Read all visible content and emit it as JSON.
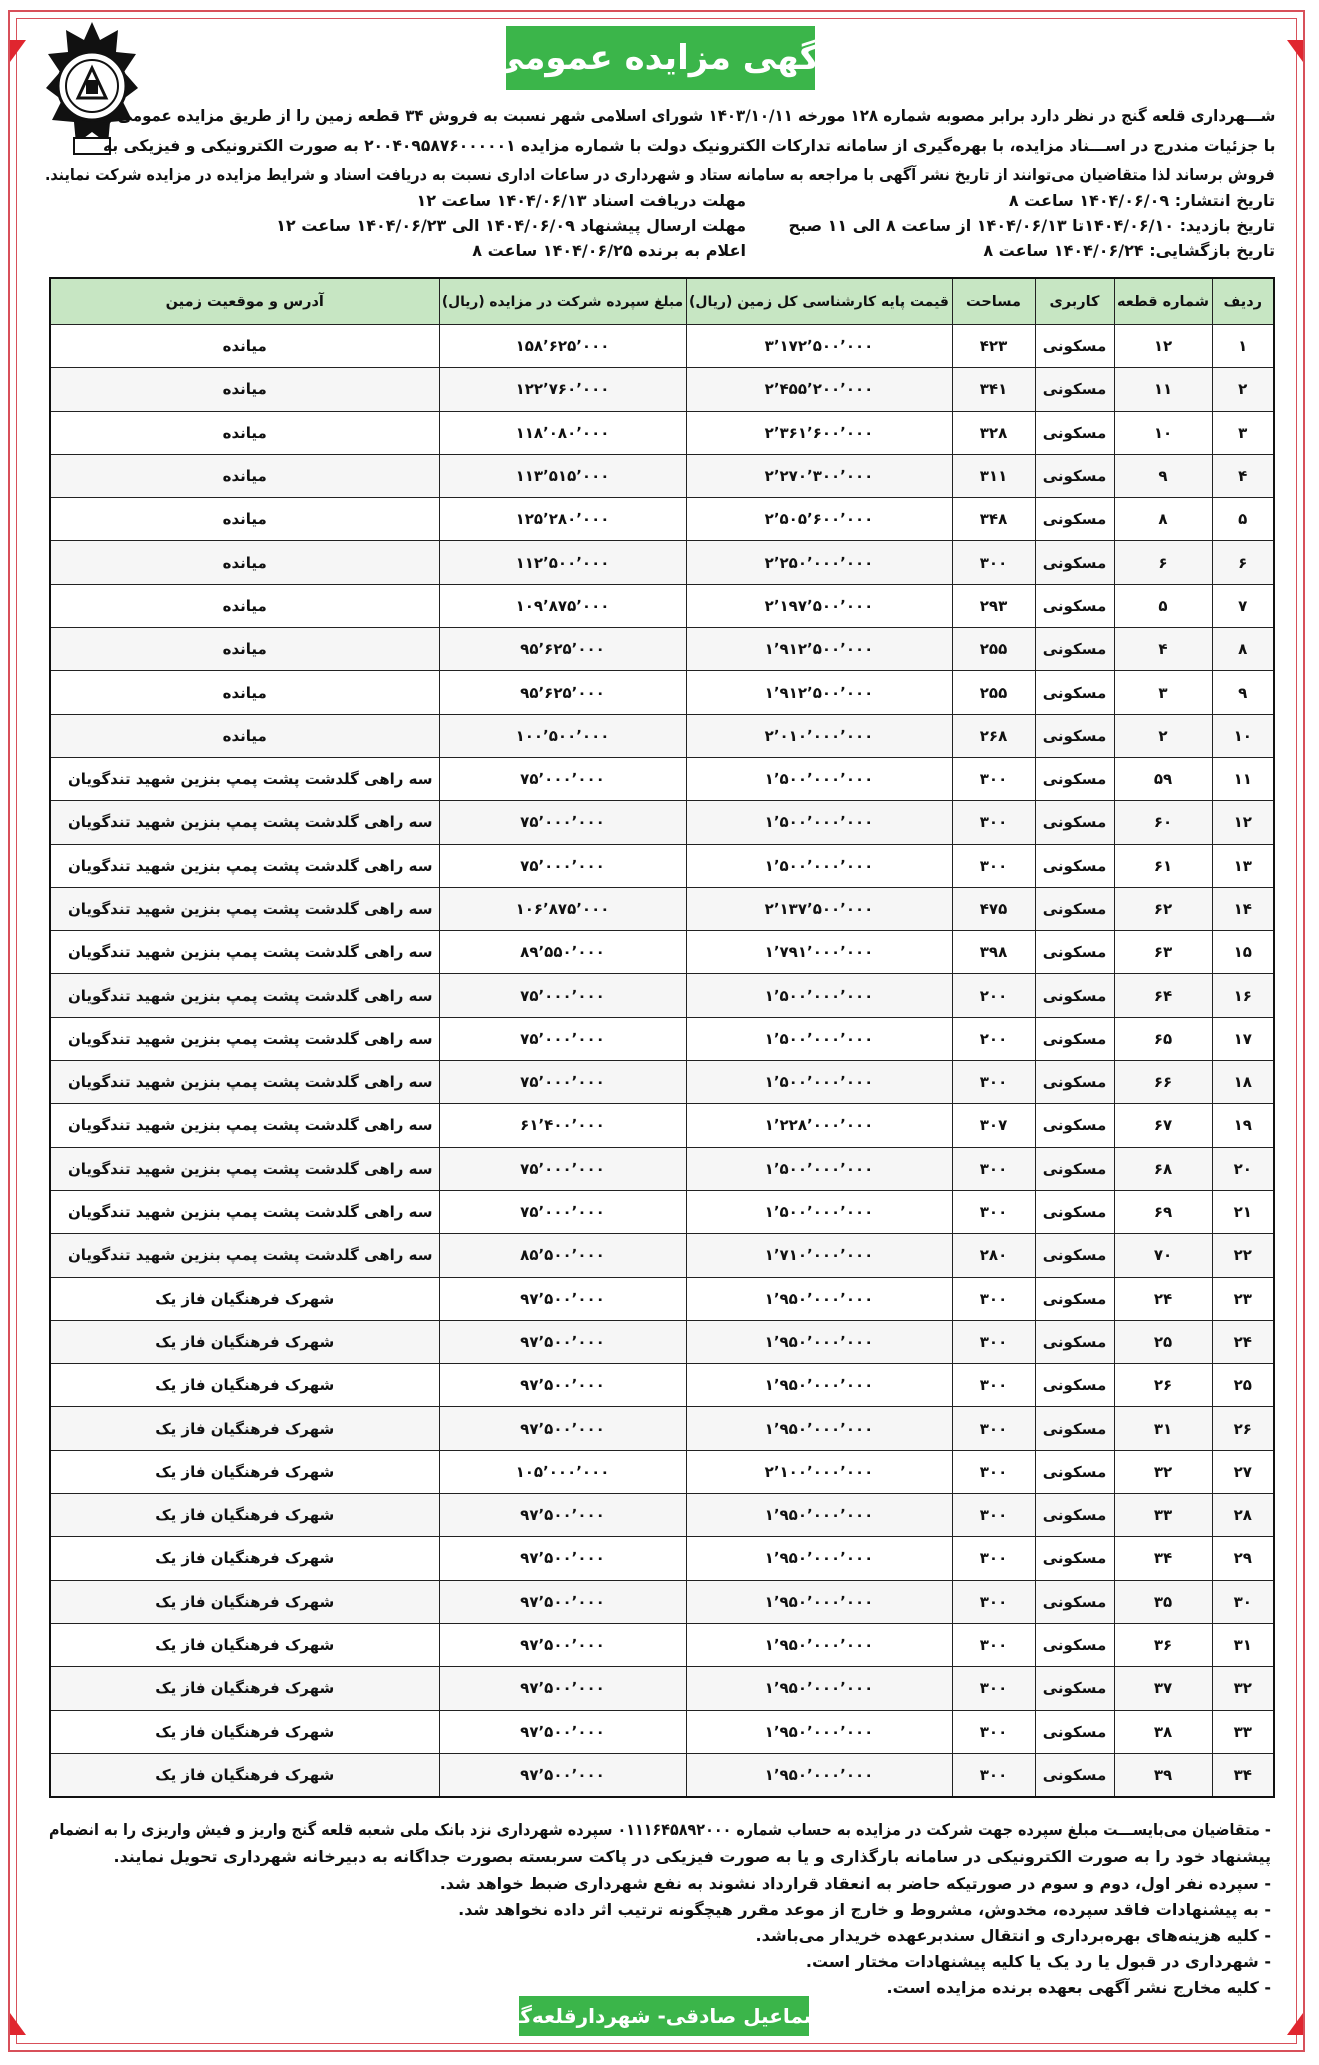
{
  "title": "آگهی مزایده عمومی",
  "logo": {
    "text": "شهرداری قلعه گنج ۱۳۳۷",
    "icon": "municipality-seal-icon"
  },
  "intro": [
    "شـــهرداری قلعه گنج در نظر دارد برابر مصوبه شماره ۱۲۸ مورخه ۱۴۰۳/۱۰/۱۱ شورای اسلامی شهر نسبت به فروش ۳۴ قطعه زمین را از طریق مزایده عمومی و",
    "با جزئیات مندرج در اســـناد مزایده، با بهره‌گیری از سامانه تدارکات الکترونیک دولت با شماره مزایده ۲۰۰۴۰۹۵۸۷۶۰۰۰۰۰۱ به صورت الکترونیکی و فیزیکی به",
    "فروش برساند لذا متقاضیان می‌توانند از تاریخ نشر آگهی با مراجعه به سامانه ستاد و شهرداری در ساعات اداری نسبت به دریافت اسناد و شرایط مزایده در مزایده شرکت نمایند."
  ],
  "dates_right": [
    "تاریخ انتشار: ۱۴۰۴/۰۶/۰۹ ساعت ۸",
    "تاریخ بازدید: ۱۴۰۴/۰۶/۱۰تا ۱۴۰۴/۰۶/۱۳ از ساعت ۸ الی ۱۱ صبح",
    "تاریخ بازگشایی: ۱۴۰۴/۰۶/۲۴ ساعت ۸"
  ],
  "dates_left": [
    "مهلت دریافت اسناد ۱۴۰۴/۰۶/۱۳ ساعت ۱۲",
    "مهلت ارسال پیشنهاد ۱۴۰۴/۰۶/۰۹ الی ۱۴۰۴/۰۶/۲۳ ساعت ۱۲",
    "اعلام به برنده ۱۴۰۴/۰۶/۲۵ ساعت ۸"
  ],
  "table": {
    "headers": [
      "ردیف",
      "شماره قطعه",
      "کاربری",
      "مساحت",
      "قیمت پایه کارشناسی کل زمین (ریال)",
      "مبلغ سپرده شرکت در مزایده (ریال)",
      "آدرس و موقعیت زمین"
    ],
    "header_color": "#c7e6c3",
    "rows": [
      [
        "۱",
        "۱۲",
        "مسکونی",
        "۴۲۳",
        "۳٬۱۷۲٬۵۰۰٬۰۰۰",
        "۱۵۸٬۶۲۵٬۰۰۰",
        "میانده"
      ],
      [
        "۲",
        "۱۱",
        "مسکونی",
        "۳۴۱",
        "۲٬۴۵۵٬۲۰۰٬۰۰۰",
        "۱۲۲٬۷۶۰٬۰۰۰",
        "میانده"
      ],
      [
        "۳",
        "۱۰",
        "مسکونی",
        "۳۲۸",
        "۲٬۳۶۱٬۶۰۰٬۰۰۰",
        "۱۱۸٬۰۸۰٬۰۰۰",
        "میانده"
      ],
      [
        "۴",
        "۹",
        "مسکونی",
        "۳۱۱",
        "۲٬۲۷۰٬۳۰۰٬۰۰۰",
        "۱۱۳٬۵۱۵٬۰۰۰",
        "میانده"
      ],
      [
        "۵",
        "۸",
        "مسکونی",
        "۳۴۸",
        "۲٬۵۰۵٬۶۰۰٬۰۰۰",
        "۱۲۵٬۲۸۰٬۰۰۰",
        "میانده"
      ],
      [
        "۶",
        "۶",
        "مسکونی",
        "۳۰۰",
        "۲٬۲۵۰٬۰۰۰٬۰۰۰",
        "۱۱۲٬۵۰۰٬۰۰۰",
        "میانده"
      ],
      [
        "۷",
        "۵",
        "مسکونی",
        "۲۹۳",
        "۲٬۱۹۷٬۵۰۰٬۰۰۰",
        "۱۰۹٬۸۷۵٬۰۰۰",
        "میانده"
      ],
      [
        "۸",
        "۴",
        "مسکونی",
        "۲۵۵",
        "۱٬۹۱۲٬۵۰۰٬۰۰۰",
        "۹۵٬۶۲۵٬۰۰۰",
        "میانده"
      ],
      [
        "۹",
        "۳",
        "مسکونی",
        "۲۵۵",
        "۱٬۹۱۲٬۵۰۰٬۰۰۰",
        "۹۵٬۶۲۵٬۰۰۰",
        "میانده"
      ],
      [
        "۱۰",
        "۲",
        "مسکونی",
        "۲۶۸",
        "۲٬۰۱۰٬۰۰۰٬۰۰۰",
        "۱۰۰٬۵۰۰٬۰۰۰",
        "میانده"
      ],
      [
        "۱۱",
        "۵۹",
        "مسکونی",
        "۳۰۰",
        "۱٬۵۰۰٬۰۰۰٬۰۰۰",
        "۷۵٬۰۰۰٬۰۰۰",
        "سه راهی گلدشت پشت پمپ بنزین شهید تندگویان"
      ],
      [
        "۱۲",
        "۶۰",
        "مسکونی",
        "۳۰۰",
        "۱٬۵۰۰٬۰۰۰٬۰۰۰",
        "۷۵٬۰۰۰٬۰۰۰",
        "سه راهی گلدشت پشت پمپ بنزین شهید تندگویان"
      ],
      [
        "۱۳",
        "۶۱",
        "مسکونی",
        "۳۰۰",
        "۱٬۵۰۰٬۰۰۰٬۰۰۰",
        "۷۵٬۰۰۰٬۰۰۰",
        "سه راهی گلدشت پشت پمپ بنزین شهید تندگویان"
      ],
      [
        "۱۴",
        "۶۲",
        "مسکونی",
        "۴۷۵",
        "۲٬۱۳۷٬۵۰۰٬۰۰۰",
        "۱۰۶٬۸۷۵٬۰۰۰",
        "سه راهی گلدشت پشت پمپ بنزین شهید تندگویان"
      ],
      [
        "۱۵",
        "۶۳",
        "مسکونی",
        "۳۹۸",
        "۱٬۷۹۱٬۰۰۰٬۰۰۰",
        "۸۹٬۵۵۰٬۰۰۰",
        "سه راهی گلدشت پشت پمپ بنزین شهید تندگویان"
      ],
      [
        "۱۶",
        "۶۴",
        "مسکونی",
        "۲۰۰",
        "۱٬۵۰۰٬۰۰۰٬۰۰۰",
        "۷۵٬۰۰۰٬۰۰۰",
        "سه راهی گلدشت پشت پمپ بنزین شهید تندگویان"
      ],
      [
        "۱۷",
        "۶۵",
        "مسکونی",
        "۲۰۰",
        "۱٬۵۰۰٬۰۰۰٬۰۰۰",
        "۷۵٬۰۰۰٬۰۰۰",
        "سه راهی گلدشت پشت پمپ بنزین شهید تندگویان"
      ],
      [
        "۱۸",
        "۶۶",
        "مسکونی",
        "۳۰۰",
        "۱٬۵۰۰٬۰۰۰٬۰۰۰",
        "۷۵٬۰۰۰٬۰۰۰",
        "سه راهی گلدشت پشت پمپ بنزین شهید تندگویان"
      ],
      [
        "۱۹",
        "۶۷",
        "مسکونی",
        "۳۰۷",
        "۱٬۲۲۸٬۰۰۰٬۰۰۰",
        "۶۱٬۴۰۰٬۰۰۰",
        "سه راهی گلدشت پشت پمپ بنزین شهید تندگویان"
      ],
      [
        "۲۰",
        "۶۸",
        "مسکونی",
        "۳۰۰",
        "۱٬۵۰۰٬۰۰۰٬۰۰۰",
        "۷۵٬۰۰۰٬۰۰۰",
        "سه راهی گلدشت پشت پمپ بنزین شهید تندگویان"
      ],
      [
        "۲۱",
        "۶۹",
        "مسکونی",
        "۳۰۰",
        "۱٬۵۰۰٬۰۰۰٬۰۰۰",
        "۷۵٬۰۰۰٬۰۰۰",
        "سه راهی گلدشت پشت پمپ بنزین شهید تندگویان"
      ],
      [
        "۲۲",
        "۷۰",
        "مسکونی",
        "۲۸۰",
        "۱٬۷۱۰٬۰۰۰٬۰۰۰",
        "۸۵٬۵۰۰٬۰۰۰",
        "سه راهی گلدشت پشت پمپ بنزین شهید تندگویان"
      ],
      [
        "۲۳",
        "۲۴",
        "مسکونی",
        "۳۰۰",
        "۱٬۹۵۰٬۰۰۰٬۰۰۰",
        "۹۷٬۵۰۰٬۰۰۰",
        "شهرک فرهنگیان فاز یک"
      ],
      [
        "۲۴",
        "۲۵",
        "مسکونی",
        "۳۰۰",
        "۱٬۹۵۰٬۰۰۰٬۰۰۰",
        "۹۷٬۵۰۰٬۰۰۰",
        "شهرک فرهنگیان فاز یک"
      ],
      [
        "۲۵",
        "۲۶",
        "مسکونی",
        "۳۰۰",
        "۱٬۹۵۰٬۰۰۰٬۰۰۰",
        "۹۷٬۵۰۰٬۰۰۰",
        "شهرک فرهنگیان فاز یک"
      ],
      [
        "۲۶",
        "۳۱",
        "مسکونی",
        "۳۰۰",
        "۱٬۹۵۰٬۰۰۰٬۰۰۰",
        "۹۷٬۵۰۰٬۰۰۰",
        "شهرک فرهنگیان فاز یک"
      ],
      [
        "۲۷",
        "۳۲",
        "مسکونی",
        "۳۰۰",
        "۲٬۱۰۰٬۰۰۰٬۰۰۰",
        "۱۰۵٬۰۰۰٬۰۰۰",
        "شهرک فرهنگیان فاز یک"
      ],
      [
        "۲۸",
        "۳۳",
        "مسکونی",
        "۳۰۰",
        "۱٬۹۵۰٬۰۰۰٬۰۰۰",
        "۹۷٬۵۰۰٬۰۰۰",
        "شهرک فرهنگیان فاز یک"
      ],
      [
        "۲۹",
        "۳۴",
        "مسکونی",
        "۳۰۰",
        "۱٬۹۵۰٬۰۰۰٬۰۰۰",
        "۹۷٬۵۰۰٬۰۰۰",
        "شهرک فرهنگیان فاز یک"
      ],
      [
        "۳۰",
        "۳۵",
        "مسکونی",
        "۳۰۰",
        "۱٬۹۵۰٬۰۰۰٬۰۰۰",
        "۹۷٬۵۰۰٬۰۰۰",
        "شهرک فرهنگیان فاز یک"
      ],
      [
        "۳۱",
        "۳۶",
        "مسکونی",
        "۳۰۰",
        "۱٬۹۵۰٬۰۰۰٬۰۰۰",
        "۹۷٬۵۰۰٬۰۰۰",
        "شهرک فرهنگیان فاز یک"
      ],
      [
        "۳۲",
        "۳۷",
        "مسکونی",
        "۳۰۰",
        "۱٬۹۵۰٬۰۰۰٬۰۰۰",
        "۹۷٬۵۰۰٬۰۰۰",
        "شهرک فرهنگیان فاز یک"
      ],
      [
        "۳۳",
        "۳۸",
        "مسکونی",
        "۳۰۰",
        "۱٬۹۵۰٬۰۰۰٬۰۰۰",
        "۹۷٬۵۰۰٬۰۰۰",
        "شهرک فرهنگیان فاز یک"
      ],
      [
        "۳۴",
        "۳۹",
        "مسکونی",
        "۳۰۰",
        "۱٬۹۵۰٬۰۰۰٬۰۰۰",
        "۹۷٬۵۰۰٬۰۰۰",
        "شهرک فرهنگیان فاز یک"
      ]
    ]
  },
  "notes": [
    "- متقاضیان می‌بایســـت مبلغ سپرده جهت شرکت در مزایده به حساب شماره ۰۱۱۱۶۴۵۸۹۲۰۰۰ سپرده شهرداری نزد بانک ملی شعبه قلعه گنج واریز و فیش واریزی را به انضمام",
    "پیشنهاد خود را به صورت الکترونیکی در سامانه بارگذاری و یا به صورت فیزیکی در پاکت سربسته بصورت جداگانه به دبیرخانه شهرداری تحویل نمایند.",
    "- سپرده نفر اول، دوم و سوم در صورتیکه حاضر به انعقاد قرارداد نشوند به نفع شهرداری ضبط خواهد شد.",
    "- به پیشنهادات فاقد سپرده، مخدوش، مشروط و خارج از موعد مقرر هیچگونه ترتیب اثر داده نخواهد شد.",
    "- کلیه هزینه‌های بهره‌برداری و انتقال سندبرعهده خریدار می‌باشد.",
    "- شهرداری در قبول یا رد یک یا کلیه پیشنهادات مختار است.",
    "- کلیه مخارج نشر آگهی بعهده برنده مزایده است."
  ],
  "signature": "اسماعیل صادقی- شهردارقلعه‌گنج",
  "colors": {
    "accent_green": "#3bb54a",
    "frame_red": "#d8505a"
  }
}
